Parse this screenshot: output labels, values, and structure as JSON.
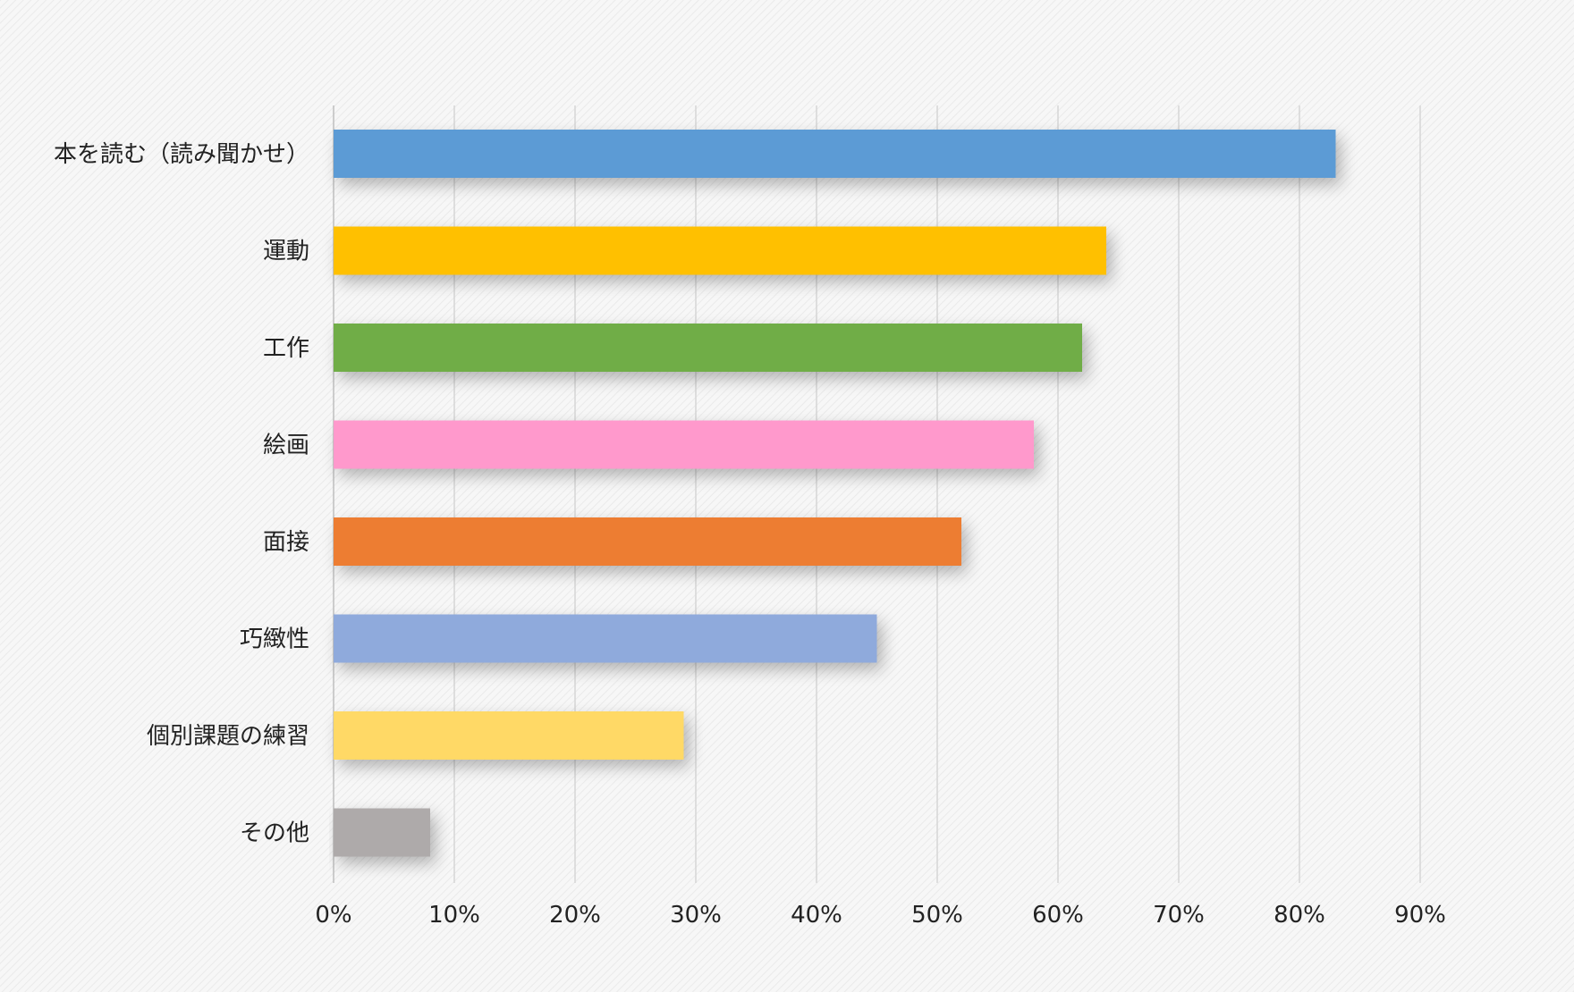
{
  "chart_data": {
    "type": "bar",
    "orientation": "horizontal",
    "title": "",
    "xlabel": "",
    "ylabel": "",
    "xlim": [
      0,
      90
    ],
    "grid": true,
    "legend": "none",
    "x_tick_labels": [
      "0%",
      "10%",
      "20%",
      "30%",
      "40%",
      "50%",
      "60%",
      "70%",
      "80%",
      "90%"
    ],
    "categories": [
      "本を読む（読み聞かせ）",
      "運動",
      "工作",
      "絵画",
      "面接",
      "巧緻性",
      "個別課題の練習",
      "その他"
    ],
    "values": [
      83,
      64,
      62,
      58,
      52,
      45,
      29,
      8
    ],
    "colors": [
      "#5B9BD5",
      "#FFC000",
      "#70AD47",
      "#FF99CC",
      "#ED7D31",
      "#8FAADC",
      "#FFD966",
      "#AEAAAA"
    ]
  }
}
